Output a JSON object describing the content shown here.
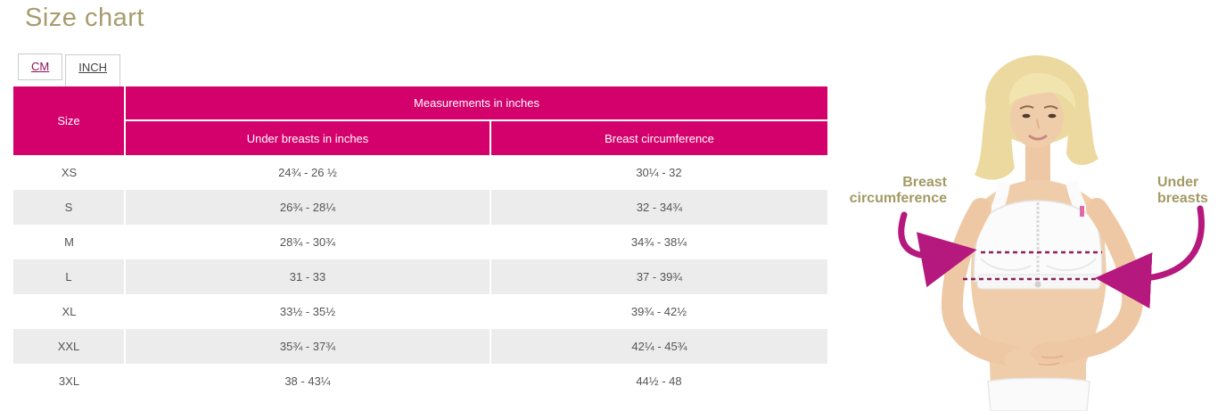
{
  "page": {
    "title": "Size chart"
  },
  "tabs": [
    {
      "label": "CM",
      "active": false
    },
    {
      "label": "INCH",
      "active": true
    }
  ],
  "table": {
    "size_header": "Size",
    "group_header": "Measurements in inches",
    "under_header": "Under breasts in inches",
    "circ_header": "Breast circumference",
    "rows": [
      {
        "size": "XS",
        "under": "24¾ - 26 ½",
        "circ": "30¼ - 32"
      },
      {
        "size": "S",
        "under": "26¾ - 28¼",
        "circ": "32 - 34¾"
      },
      {
        "size": "M",
        "under": "28¾ - 30¾",
        "circ": "34¾ - 38¼"
      },
      {
        "size": "L",
        "under": "31 - 33",
        "circ": "37 - 39¾"
      },
      {
        "size": "XL",
        "under": "33½ - 35½",
        "circ": "39¾ - 42½"
      },
      {
        "size": "XXL",
        "under": "35¾ - 37¾",
        "circ": "42¼ - 45¾"
      },
      {
        "size": "3XL",
        "under": "38 - 43¼",
        "circ": "44½ - 48"
      }
    ]
  },
  "figure": {
    "label_left_line1": "Breast",
    "label_left_line2": "circumference",
    "label_right_line1": "Under",
    "label_right_line2": "breasts"
  },
  "colors": {
    "accent_pink": "#d4016d",
    "stripe_gray": "#ececec",
    "title_gold": "#a79c6e",
    "label_gold": "#a39a63",
    "arrow_magenta": "#b5197d",
    "tab_link": "#8e1257"
  }
}
